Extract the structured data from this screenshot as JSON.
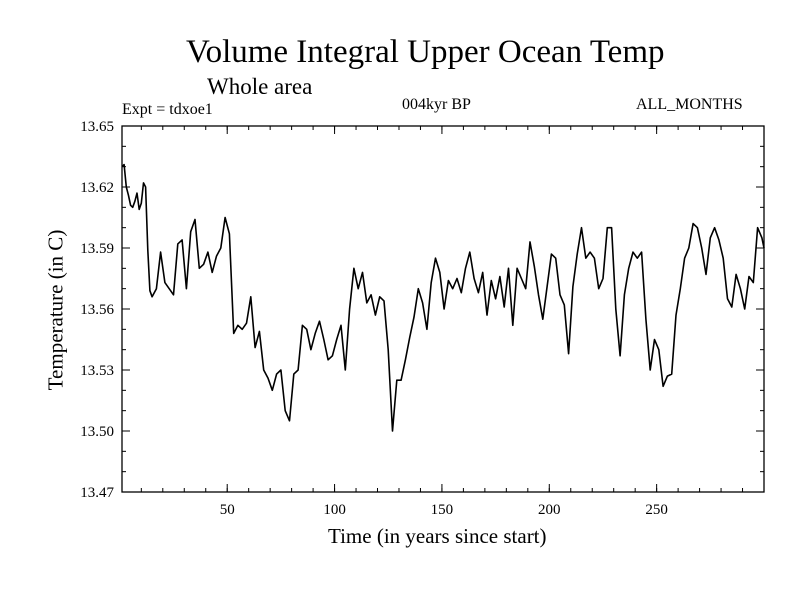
{
  "header": {
    "title": "Volume Integral Upper Ocean Temp",
    "subtitle": "Whole area",
    "experiment": "Expt = tdxoe1",
    "period": "004kyr BP",
    "months": "ALL_MONTHS"
  },
  "chart_data": {
    "type": "line",
    "title": "Volume Integral Upper Ocean Temp",
    "subtitle": "Whole area",
    "xlabel": "Time (in years since start)",
    "ylabel": "Temperature (in C)",
    "xlim": [
      1,
      300
    ],
    "ylim": [
      13.47,
      13.65
    ],
    "xticks": [
      50,
      100,
      150,
      200,
      250
    ],
    "xtick_labels": [
      "50",
      "100",
      "150",
      "200",
      "250"
    ],
    "yticks": [
      13.47,
      13.5,
      13.53,
      13.56,
      13.59,
      13.62,
      13.65
    ],
    "ytick_labels": [
      "13.47",
      "13.50",
      "13.53",
      "13.56",
      "13.59",
      "13.62",
      "13.65"
    ],
    "grid": false,
    "series": [
      {
        "name": "Volume Integral Upper Ocean Temp",
        "x": [
          1,
          2,
          3,
          4,
          5,
          6,
          7,
          8,
          9,
          10,
          11,
          12,
          13,
          14,
          15,
          17,
          19,
          21,
          23,
          25,
          27,
          29,
          31,
          33,
          35,
          37,
          39,
          41,
          43,
          45,
          47,
          49,
          51,
          53,
          55,
          57,
          59,
          61,
          63,
          65,
          67,
          69,
          71,
          73,
          75,
          77,
          79,
          81,
          83,
          85,
          87,
          89,
          91,
          93,
          95,
          97,
          99,
          101,
          103,
          105,
          107,
          109,
          111,
          113,
          115,
          117,
          119,
          121,
          123,
          125,
          127,
          129,
          131,
          133,
          135,
          137,
          139,
          141,
          143,
          145,
          147,
          149,
          151,
          153,
          155,
          157,
          159,
          161,
          163,
          165,
          167,
          169,
          171,
          173,
          175,
          177,
          179,
          181,
          183,
          185,
          187,
          189,
          191,
          193,
          195,
          197,
          199,
          201,
          203,
          205,
          207,
          209,
          211,
          213,
          215,
          217,
          219,
          221,
          223,
          225,
          227,
          229,
          231,
          233,
          235,
          237,
          239,
          241,
          243,
          245,
          247,
          249,
          251,
          253,
          255,
          257,
          259,
          261,
          263,
          265,
          267,
          269,
          271,
          273,
          275,
          277,
          279,
          281,
          283,
          285,
          287,
          289,
          291,
          293,
          295,
          297,
          299,
          300
        ],
        "y": [
          13.63,
          13.631,
          13.62,
          13.616,
          13.611,
          13.61,
          13.613,
          13.617,
          13.609,
          13.612,
          13.622,
          13.62,
          13.589,
          13.569,
          13.566,
          13.57,
          13.588,
          13.573,
          13.57,
          13.567,
          13.592,
          13.594,
          13.57,
          13.598,
          13.604,
          13.58,
          13.582,
          13.588,
          13.578,
          13.586,
          13.59,
          13.605,
          13.597,
          13.548,
          13.552,
          13.55,
          13.553,
          13.566,
          13.541,
          13.549,
          13.53,
          13.526,
          13.52,
          13.528,
          13.53,
          13.51,
          13.505,
          13.528,
          13.53,
          13.552,
          13.55,
          13.54,
          13.548,
          13.554,
          13.545,
          13.535,
          13.537,
          13.545,
          13.552,
          13.53,
          13.56,
          13.58,
          13.57,
          13.578,
          13.563,
          13.567,
          13.557,
          13.566,
          13.564,
          13.54,
          13.5,
          13.525,
          13.525,
          13.535,
          13.546,
          13.556,
          13.57,
          13.563,
          13.55,
          13.573,
          13.585,
          13.578,
          13.56,
          13.574,
          13.57,
          13.575,
          13.568,
          13.58,
          13.588,
          13.575,
          13.568,
          13.578,
          13.557,
          13.574,
          13.565,
          13.576,
          13.561,
          13.58,
          13.552,
          13.58,
          13.575,
          13.57,
          13.593,
          13.581,
          13.567,
          13.555,
          13.571,
          13.587,
          13.585,
          13.567,
          13.562,
          13.538,
          13.571,
          13.587,
          13.6,
          13.585,
          13.588,
          13.585,
          13.57,
          13.575,
          13.6,
          13.6,
          13.56,
          13.537,
          13.567,
          13.58,
          13.588,
          13.585,
          13.588,
          13.555,
          13.53,
          13.545,
          13.54,
          13.522,
          13.527,
          13.528,
          13.557,
          13.57,
          13.585,
          13.59,
          13.602,
          13.6,
          13.59,
          13.577,
          13.595,
          13.6,
          13.594,
          13.585,
          13.565,
          13.561,
          13.577,
          13.57,
          13.56,
          13.576,
          13.573,
          13.6,
          13.595,
          13.59
        ]
      }
    ]
  }
}
